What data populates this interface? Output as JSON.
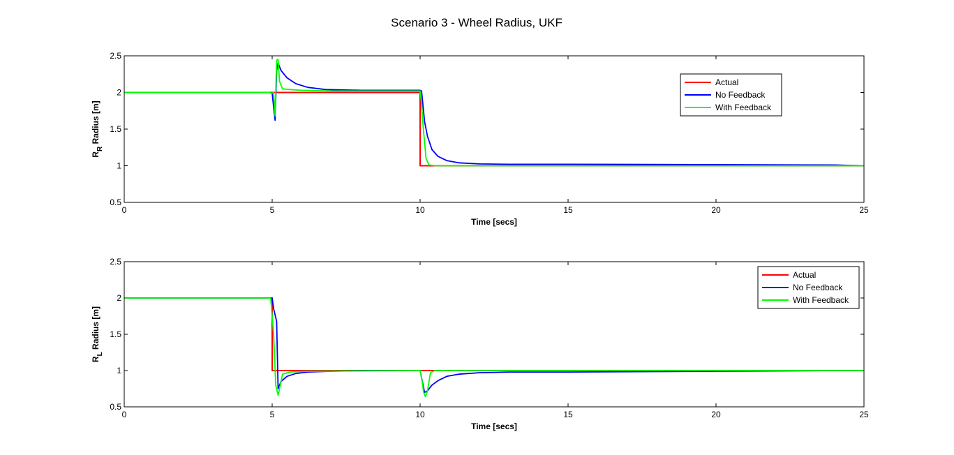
{
  "figure_title": "Scenario 3 - Wheel Radius, UKF",
  "colors": {
    "actual": "#ff0000",
    "no_feedback": "#0000ff",
    "with_feedback": "#00ff00"
  },
  "chart_data": [
    {
      "type": "line",
      "xlabel": "Time [secs]",
      "ylabel_main": "R",
      "ylabel_sub": "R",
      "ylabel_rest": " Radius [m]",
      "xlim": [
        0,
        25
      ],
      "ylim": [
        0.5,
        2.5
      ],
      "xticks": [
        0,
        5,
        10,
        15,
        20,
        25
      ],
      "yticks": [
        0.5,
        1,
        1.5,
        2,
        2.5
      ],
      "grid": false,
      "legend_position": "top-right-inset",
      "series": [
        {
          "name": "Actual",
          "color": "#ff0000",
          "x": [
            0,
            10,
            10,
            10,
            25
          ],
          "y": [
            2,
            2,
            1.5,
            1,
            1
          ]
        },
        {
          "name": "No Feedback",
          "color": "#0000ff",
          "x": [
            0,
            4.9,
            5.0,
            5.05,
            5.1,
            5.15,
            5.2,
            5.3,
            5.5,
            5.8,
            6.2,
            6.8,
            8,
            10,
            10.05,
            10.15,
            10.25,
            10.4,
            10.6,
            10.9,
            11.3,
            12,
            13,
            15,
            20,
            24,
            25
          ],
          "y": [
            2,
            2,
            1.99,
            1.8,
            1.62,
            2.3,
            2.4,
            2.3,
            2.2,
            2.12,
            2.07,
            2.04,
            2.03,
            2.03,
            2.02,
            1.6,
            1.4,
            1.22,
            1.13,
            1.07,
            1.04,
            1.025,
            1.02,
            1.02,
            1.015,
            1.01,
            1.0
          ]
        },
        {
          "name": "With Feedback",
          "color": "#00ff00",
          "x": [
            0,
            4.9,
            5.0,
            5.05,
            5.1,
            5.15,
            5.2,
            5.25,
            5.35,
            5.6,
            6,
            7,
            10,
            10.05,
            10.1,
            10.2,
            10.3,
            10.5,
            11,
            15,
            25
          ],
          "y": [
            2,
            2,
            1.99,
            2.0,
            1.68,
            2.44,
            2.45,
            2.15,
            2.05,
            2.04,
            2.03,
            2.02,
            2.02,
            1.85,
            1.55,
            1.1,
            1.01,
            1.0,
            1.0,
            1.0,
            1.0
          ]
        }
      ]
    },
    {
      "type": "line",
      "xlabel": "Time [secs]",
      "ylabel_main": "R",
      "ylabel_sub": "L",
      "ylabel_rest": " Radius [m]",
      "xlim": [
        0,
        25
      ],
      "ylim": [
        0.5,
        2.5
      ],
      "xticks": [
        0,
        5,
        10,
        15,
        20,
        25
      ],
      "yticks": [
        0.5,
        1,
        1.5,
        2,
        2.5
      ],
      "grid": false,
      "legend_position": "top-right",
      "series": [
        {
          "name": "Actual",
          "color": "#ff0000",
          "x": [
            0,
            5,
            5,
            5,
            25
          ],
          "y": [
            2,
            2,
            1.5,
            1,
            1
          ]
        },
        {
          "name": "No Feedback",
          "color": "#0000ff",
          "x": [
            0,
            5.0,
            5.05,
            5.15,
            5.2,
            5.3,
            5.5,
            5.8,
            6.2,
            7,
            8,
            10,
            10.05,
            10.15,
            10.25,
            10.4,
            10.6,
            10.9,
            11.3,
            12,
            13,
            15,
            20,
            24,
            25
          ],
          "y": [
            2,
            2.0,
            1.85,
            1.68,
            0.75,
            0.85,
            0.92,
            0.96,
            0.98,
            0.99,
            1.0,
            1.0,
            0.9,
            0.7,
            0.72,
            0.8,
            0.86,
            0.92,
            0.95,
            0.97,
            0.98,
            0.98,
            0.99,
            1.0,
            1.0
          ]
        },
        {
          "name": "With Feedback",
          "color": "#00ff00",
          "x": [
            0,
            4.95,
            5.05,
            5.12,
            5.2,
            5.25,
            5.35,
            5.6,
            6.2,
            10,
            10.05,
            10.12,
            10.18,
            10.25,
            10.35,
            10.5,
            11,
            25
          ],
          "y": [
            2,
            2.0,
            1.5,
            0.8,
            0.66,
            0.75,
            0.95,
            0.98,
            0.99,
            1.0,
            0.9,
            0.7,
            0.64,
            0.72,
            0.97,
            1.0,
            1.0,
            1.0
          ]
        }
      ]
    }
  ]
}
